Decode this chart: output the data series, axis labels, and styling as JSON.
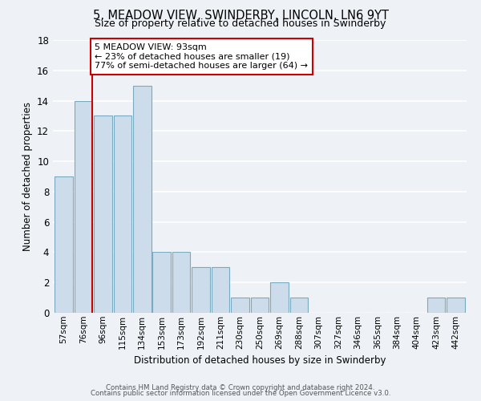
{
  "title": "5, MEADOW VIEW, SWINDERBY, LINCOLN, LN6 9YT",
  "subtitle": "Size of property relative to detached houses in Swinderby",
  "xlabel": "Distribution of detached houses by size in Swinderby",
  "ylabel": "Number of detached properties",
  "bar_labels": [
    "57sqm",
    "76sqm",
    "96sqm",
    "115sqm",
    "134sqm",
    "153sqm",
    "173sqm",
    "192sqm",
    "211sqm",
    "230sqm",
    "250sqm",
    "269sqm",
    "288sqm",
    "307sqm",
    "327sqm",
    "346sqm",
    "365sqm",
    "384sqm",
    "404sqm",
    "423sqm",
    "442sqm"
  ],
  "bar_values": [
    9,
    14,
    13,
    13,
    15,
    4,
    4,
    3,
    3,
    1,
    1,
    2,
    1,
    0,
    0,
    0,
    0,
    0,
    0,
    1,
    1
  ],
  "bar_color": "#ccdcea",
  "bar_edge_color": "#7aaabf",
  "property_line_color": "#cc0000",
  "annotation_text": "5 MEADOW VIEW: 93sqm\n← 23% of detached houses are smaller (19)\n77% of semi-detached houses are larger (64) →",
  "annotation_box_color": "#ffffff",
  "annotation_box_edge": "#cc0000",
  "ylim": [
    0,
    18
  ],
  "yticks": [
    0,
    2,
    4,
    6,
    8,
    10,
    12,
    14,
    16,
    18
  ],
  "footer_line1": "Contains HM Land Registry data © Crown copyright and database right 2024.",
  "footer_line2": "Contains public sector information licensed under the Open Government Licence v3.0.",
  "background_color": "#eef2f6",
  "grid_color": "#ffffff",
  "fig_width": 6.0,
  "fig_height": 5.0,
  "dpi": 100
}
